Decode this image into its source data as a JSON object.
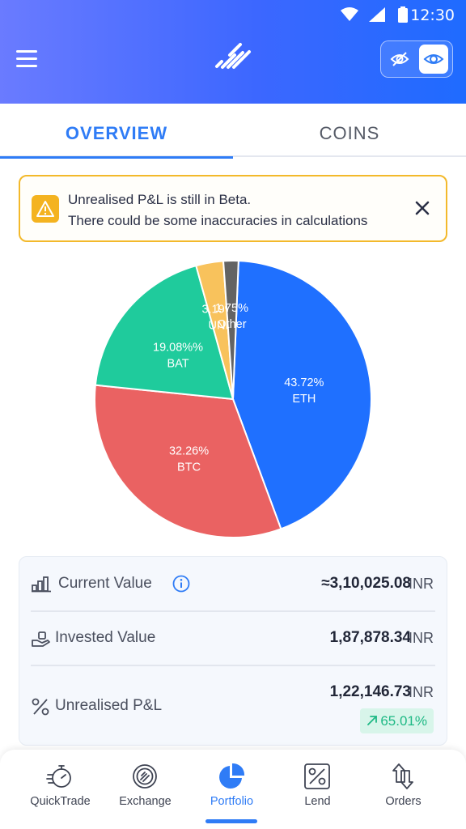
{
  "status_bar": {
    "time": "12:30"
  },
  "header": {
    "menu_icon": "menu-icon",
    "logo_icon": "wazirx-logo-icon",
    "privacy_toggle": {
      "hide_icon": "eye-off-icon",
      "show_icon": "eye-icon",
      "active": "show"
    }
  },
  "tabs": [
    {
      "label": "OVERVIEW",
      "active": true
    },
    {
      "label": "COINS",
      "active": false
    }
  ],
  "banner": {
    "line1": "Unrealised P&L is still in Beta.",
    "line2": "There could be some inaccuracies in calculations",
    "icon": "warning-icon",
    "close_icon": "close-icon",
    "border_color": "#f3b92b"
  },
  "chart_data": {
    "type": "pie",
    "slices": [
      {
        "label": "ETH",
        "value_label": "43.72%",
        "value": 43.72,
        "color": "#1f70ff"
      },
      {
        "label": "BTC",
        "value_label": "32.26%",
        "value": 32.26,
        "color": "#ea6262"
      },
      {
        "label": "BAT",
        "value_label": "19.08%%",
        "value": 19.08,
        "color": "#1fcb9c"
      },
      {
        "label": "UNI",
        "value_label": "3.19%",
        "value": 3.19,
        "color": "#f8c25c"
      },
      {
        "label": "Other",
        "value_label": "1.75%",
        "value": 1.75,
        "color": "#636363"
      }
    ]
  },
  "summary": {
    "current_value": {
      "label": "Current Value",
      "value": "≈3,10,025.08",
      "unit": "INR",
      "icon": "chart-bars-icon",
      "info_icon": "info-icon"
    },
    "invested_value": {
      "label": "Invested Value",
      "value": "1,87,878.34",
      "unit": "INR",
      "icon": "hand-coin-icon"
    },
    "unrealised_pnl": {
      "label": "Unrealised P&L",
      "value": "1,22,146.73",
      "unit": "INR",
      "icon": "percent-icon",
      "change": "65.01%",
      "change_icon": "arrow-up-right-icon",
      "change_color": "#1fb985"
    }
  },
  "bottom_nav": {
    "items": [
      {
        "label": "QuickTrade",
        "icon": "stopwatch-icon",
        "active": false
      },
      {
        "label": "Exchange",
        "icon": "exchange-icon",
        "active": false
      },
      {
        "label": "Portfolio",
        "icon": "pie-chart-icon",
        "active": true
      },
      {
        "label": "Lend",
        "icon": "percent-tag-icon",
        "active": false
      },
      {
        "label": "Orders",
        "icon": "swap-arrows-icon",
        "active": false
      }
    ],
    "accent": "#2f7cf6"
  }
}
